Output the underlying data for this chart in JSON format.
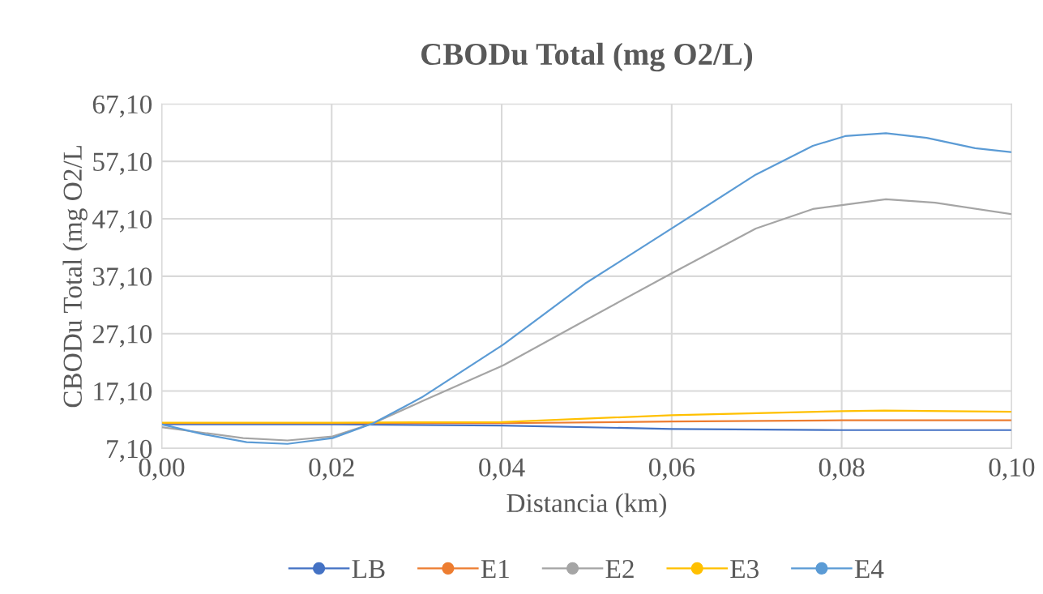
{
  "chart_data": {
    "type": "line",
    "title": "CBODu Total (mg O2/L)",
    "xlabel": "Distancia (km)",
    "ylabel": "CBODu Total (mg O2/L",
    "series": [
      {
        "name": "LB",
        "color": "#4472c4",
        "x": [
          0,
          0.02,
          0.04,
          0.06,
          0.08,
          0.1
        ],
        "values": [
          11.3,
          11.3,
          11.1,
          10.5,
          10.3,
          10.3
        ]
      },
      {
        "name": "E1",
        "color": "#ed7d31",
        "x": [
          0,
          0.02,
          0.04,
          0.06,
          0.08,
          0.1
        ],
        "values": [
          11.5,
          11.5,
          11.5,
          11.8,
          12.0,
          12.0
        ]
      },
      {
        "name": "E2",
        "color": "#a5a5a5",
        "x": [
          0,
          0.0096,
          0.0148,
          0.0201,
          0.0249,
          0.0306,
          0.0402,
          0.0498,
          0.06,
          0.0699,
          0.0766,
          0.0852,
          0.091,
          0.1
        ],
        "values": [
          10.8,
          8.9,
          8.5,
          9.2,
          11.5,
          15.3,
          21.6,
          29.4,
          37.6,
          45.4,
          48.8,
          50.5,
          49.9,
          47.9
        ]
      },
      {
        "name": "E3",
        "color": "#ffc000",
        "x": [
          0,
          0.02,
          0.04,
          0.06,
          0.08,
          0.085,
          0.1
        ],
        "values": [
          11.6,
          11.6,
          11.7,
          12.9,
          13.6,
          13.7,
          13.5
        ]
      },
      {
        "name": "E4",
        "color": "#5b9bd5",
        "x": [
          0,
          0.0048,
          0.01,
          0.0148,
          0.0201,
          0.0249,
          0.0306,
          0.0402,
          0.0498,
          0.0603,
          0.0699,
          0.0766,
          0.0804,
          0.0852,
          0.09,
          0.0957,
          0.1
        ],
        "values": [
          11.3,
          9.6,
          8.2,
          7.9,
          8.9,
          11.5,
          16.0,
          25.2,
          35.8,
          45.7,
          54.8,
          59.8,
          61.5,
          62.0,
          61.2,
          59.4,
          58.7
        ]
      }
    ],
    "xlim": [
      0,
      0.1
    ],
    "xticks": [
      {
        "value": 0,
        "label": "0,00"
      },
      {
        "value": 0.02,
        "label": "0,02"
      },
      {
        "value": 0.04,
        "label": "0,04"
      },
      {
        "value": 0.06,
        "label": "0,06"
      },
      {
        "value": 0.08,
        "label": "0,08"
      },
      {
        "value": 0.1,
        "label": "0,10"
      }
    ],
    "ylim": [
      7.1,
      67.1
    ],
    "yticks": [
      {
        "value": 7.1,
        "label": "7,10"
      },
      {
        "value": 17.1,
        "label": "17,10"
      },
      {
        "value": 27.1,
        "label": "27,10"
      },
      {
        "value": 37.1,
        "label": "37,10"
      },
      {
        "value": 47.1,
        "label": "47,10"
      },
      {
        "value": 57.1,
        "label": "57,10"
      },
      {
        "value": 67.1,
        "label": "67,10"
      }
    ],
    "grid": true,
    "legend": "bottom",
    "marker": "none",
    "line_style": "solid"
  }
}
